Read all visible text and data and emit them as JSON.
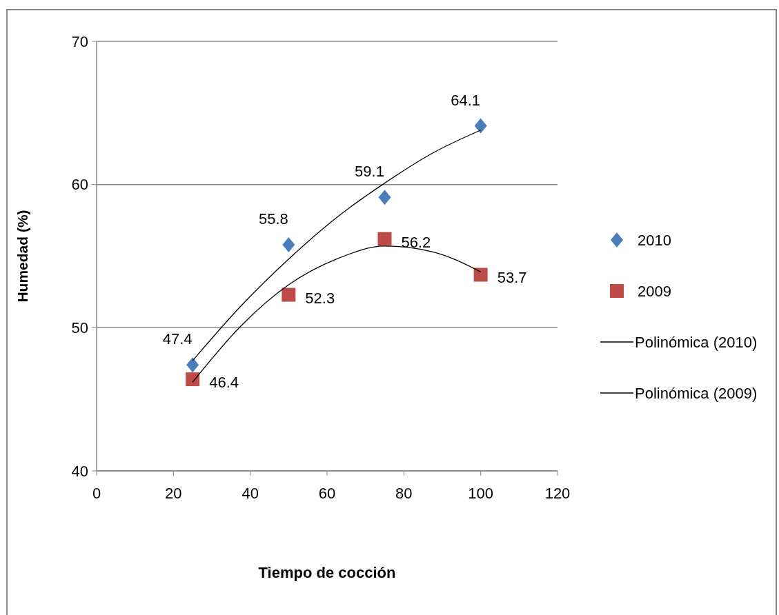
{
  "chart_data": {
    "type": "scatter",
    "xlabel": "Tiempo de cocción",
    "ylabel": "Humedad (%)",
    "xlim": [
      0,
      120
    ],
    "xticks": [
      0,
      20,
      40,
      60,
      80,
      100,
      120
    ],
    "ylim": [
      40,
      70
    ],
    "yticks": [
      40,
      50,
      60,
      70
    ],
    "grid": "y",
    "legend": "right",
    "series": [
      {
        "name": "2010",
        "marker": "diamond",
        "color": "#4a7ebb",
        "x": [
          25,
          50,
          75,
          100
        ],
        "values": [
          47.4,
          55.8,
          59.1,
          64.1
        ],
        "value_labels": [
          "47.4",
          "55.8",
          "59.1",
          "64.1"
        ]
      },
      {
        "name": "2009",
        "marker": "square",
        "color": "#be4b48",
        "x": [
          25,
          50,
          75,
          100
        ],
        "values": [
          46.4,
          52.3,
          56.2,
          53.7
        ],
        "value_labels": [
          "46.4",
          "52.3",
          "56.2",
          "53.7"
        ]
      },
      {
        "name": "Polinómica (2010)",
        "type": "line",
        "color": "#000000",
        "line_style": "solid",
        "x": [
          25,
          37.5,
          50,
          62.5,
          75,
          87.5,
          100
        ],
        "values": [
          47.7,
          51.5,
          54.8,
          57.7,
          60.1,
          62.2,
          63.8
        ]
      },
      {
        "name": "Polinómica (2009)",
        "type": "line",
        "color": "#000000",
        "line_style": "solid",
        "x": [
          25,
          37.5,
          50,
          62.5,
          75,
          87.5,
          100
        ],
        "values": [
          46.2,
          50.1,
          53.0,
          54.8,
          55.7,
          55.3,
          53.9
        ]
      }
    ]
  }
}
